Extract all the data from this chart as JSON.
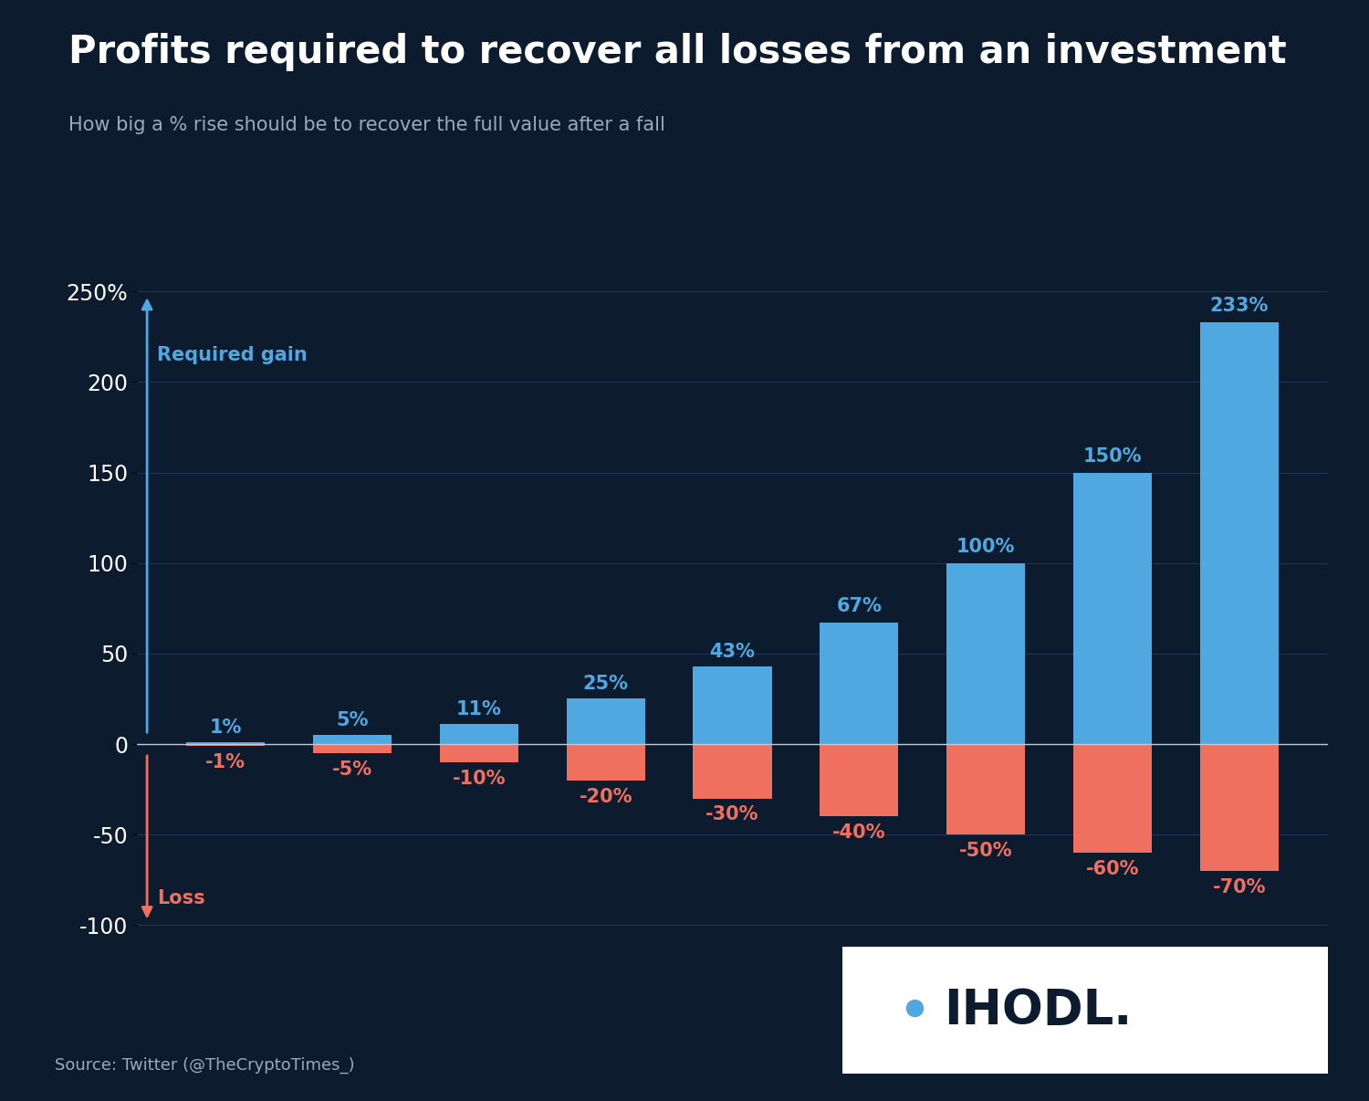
{
  "title": "Profits required to recover all losses from an investment",
  "subtitle": "How big a % rise should be to recover the full value after a fall",
  "source": "Source: Twitter (@TheCryptoTimes_)",
  "losses": [
    -1,
    -5,
    -10,
    -20,
    -30,
    -40,
    -50,
    -60,
    -70
  ],
  "gains": [
    1,
    5,
    11,
    25,
    43,
    67,
    100,
    150,
    233
  ],
  "loss_labels": [
    "-1%",
    "-5%",
    "-10%",
    "-20%",
    "-30%",
    "-40%",
    "-50%",
    "-60%",
    "-70%"
  ],
  "gain_labels": [
    "1%",
    "5%",
    "11%",
    "25%",
    "43%",
    "67%",
    "100%",
    "150%",
    "233%"
  ],
  "bar_color_gain": "#4fa8e0",
  "bar_color_loss": "#f07060",
  "background_color": "#0d1b2e",
  "grid_color": "#1e3355",
  "text_color": "#ffffff",
  "yticks": [
    -100,
    -50,
    0,
    50,
    100,
    150,
    200,
    250
  ],
  "ytick_labels": [
    "-100",
    "-50",
    "0",
    "50",
    "100",
    "150",
    "200",
    "250%"
  ],
  "ylim": [
    -112,
    265
  ],
  "bar_width": 0.62,
  "title_fontsize": 30,
  "subtitle_fontsize": 15,
  "label_fontsize": 15,
  "tick_fontsize": 17,
  "source_fontsize": 13,
  "arrow_label_gain": "Required gain",
  "arrow_label_loss": "Loss",
  "logo_dot_color": "#4fa8e0",
  "logo_text_color": "#0d1b2e"
}
